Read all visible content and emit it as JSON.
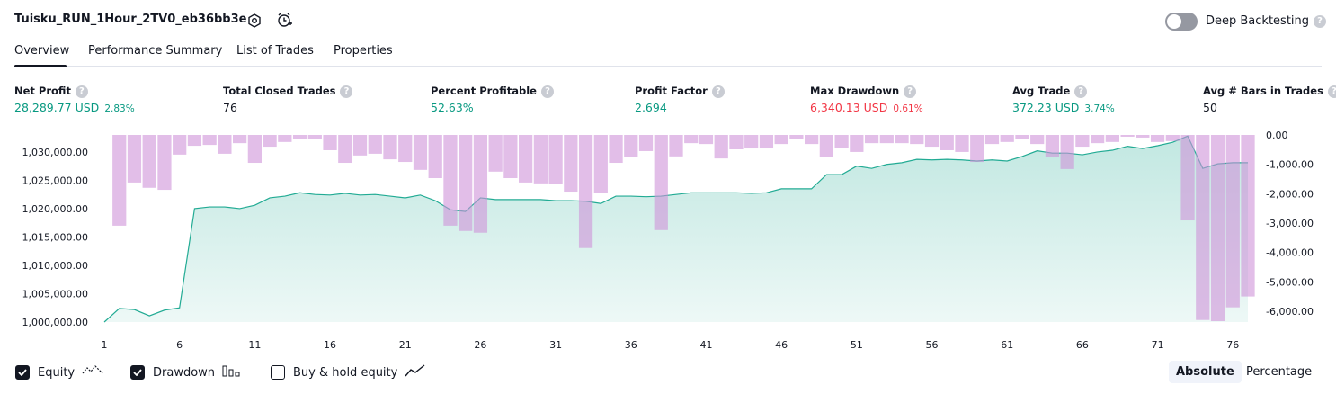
{
  "header": {
    "title": "Tuisku_RUN_1Hour_2TV0_eb36bb3e",
    "toggle_label": "Deep Backtesting"
  },
  "tabs": [
    "Overview",
    "Performance Summary",
    "List of Trades",
    "Properties"
  ],
  "metrics": [
    {
      "label": "Net Profit",
      "value": "28,289.77 USD",
      "extra": "2.83%",
      "color": "#089981"
    },
    {
      "label": "Total Closed Trades",
      "value": "76",
      "color": "#131722"
    },
    {
      "label": "Percent Profitable",
      "value": "52.63%",
      "color": "#089981"
    },
    {
      "label": "Profit Factor",
      "value": "2.694",
      "color": "#089981"
    },
    {
      "label": "Max Drawdown",
      "value": "6,340.13 USD",
      "extra": "0.61%",
      "color": "#f23645"
    },
    {
      "label": "Avg Trade",
      "value": "372.23 USD",
      "extra": "3.74%",
      "color": "#089981"
    },
    {
      "label": "Avg # Bars in Trades",
      "value": "50",
      "color": "#131722"
    }
  ],
  "chart_data": {
    "type": "line",
    "x": [
      1,
      2,
      3,
      4,
      5,
      6,
      7,
      8,
      9,
      10,
      11,
      12,
      13,
      14,
      15,
      16,
      17,
      18,
      19,
      20,
      21,
      22,
      23,
      24,
      25,
      26,
      27,
      28,
      29,
      30,
      31,
      32,
      33,
      34,
      35,
      36,
      37,
      38,
      39,
      40,
      41,
      42,
      43,
      44,
      45,
      46,
      47,
      48,
      49,
      50,
      51,
      52,
      53,
      54,
      55,
      56,
      57,
      58,
      59,
      60,
      61,
      62,
      63,
      64,
      65,
      66,
      67,
      68,
      69,
      70,
      71,
      72,
      73,
      74,
      75,
      76,
      77
    ],
    "series": [
      {
        "name": "Equity",
        "color": "#22ab94",
        "values": [
          1000000,
          1002400,
          1002200,
          1001100,
          1002100,
          1002500,
          1020000,
          1020300,
          1020300,
          1020000,
          1020600,
          1021900,
          1022200,
          1022800,
          1022500,
          1022400,
          1022700,
          1022400,
          1022500,
          1022200,
          1021900,
          1022400,
          1021400,
          1019800,
          1019500,
          1021900,
          1021600,
          1021600,
          1021600,
          1021600,
          1021400,
          1021400,
          1021300,
          1020900,
          1022200,
          1022200,
          1022100,
          1022200,
          1022500,
          1022800,
          1022800,
          1022800,
          1022800,
          1022700,
          1022800,
          1023500,
          1023500,
          1023500,
          1026000,
          1026000,
          1027500,
          1027100,
          1027800,
          1028100,
          1028700,
          1028600,
          1028700,
          1028600,
          1028400,
          1028600,
          1028400,
          1029200,
          1030200,
          1029800,
          1029800,
          1029500,
          1030000,
          1030300,
          1031000,
          1030600,
          1031100,
          1031700,
          1032800,
          1027100,
          1027900,
          1028100,
          1028100
        ]
      },
      {
        "name": "Drawdown",
        "color": "#ce93d8",
        "axis": "y2",
        "values": [
          null,
          -3090,
          -1620,
          -1800,
          -1870,
          -670,
          -370,
          -340,
          -640,
          -280,
          -950,
          -400,
          -240,
          -150,
          -150,
          -520,
          -950,
          -700,
          -640,
          -830,
          -920,
          -1190,
          -1470,
          -3090,
          -3270,
          -3330,
          -1250,
          -1470,
          -1620,
          -1650,
          -1680,
          -1930,
          -3850,
          -1990,
          -950,
          -760,
          -550,
          -3240,
          -730,
          -280,
          -310,
          -800,
          -490,
          -460,
          -460,
          -310,
          -150,
          -310,
          -760,
          -430,
          -580,
          -280,
          -280,
          -280,
          -310,
          -400,
          -520,
          -580,
          -920,
          -310,
          -240,
          -150,
          -310,
          -760,
          -1160,
          -400,
          -280,
          -240,
          -60,
          -90,
          -240,
          -210,
          -2910,
          -6300,
          -6340,
          -5870,
          -5500
        ]
      }
    ],
    "xlim": [
      1,
      77
    ],
    "xticks": [
      1,
      6,
      11,
      16,
      21,
      26,
      31,
      36,
      41,
      46,
      51,
      56,
      61,
      66,
      71,
      76
    ],
    "ylim": [
      1000000,
      1033000
    ],
    "yticks": [
      {
        "value": 1000000,
        "label": "1,000,000.00"
      },
      {
        "value": 1005000,
        "label": "1,005,000.00"
      },
      {
        "value": 1010000,
        "label": "1,010,000.00"
      },
      {
        "value": 1015000,
        "label": "1,015,000.00"
      },
      {
        "value": 1020000,
        "label": "1,020,000.00"
      },
      {
        "value": 1025000,
        "label": "1,025,000.00"
      },
      {
        "value": 1030000,
        "label": "1,030,000.00"
      }
    ],
    "y2lim": [
      -6370,
      0
    ],
    "y2ticks": [
      {
        "value": 0,
        "label": "0.00"
      },
      {
        "value": -1000,
        "label": "-1,000.00"
      },
      {
        "value": -2000,
        "label": "-2,000.00"
      },
      {
        "value": -3000,
        "label": "-3,000.00"
      },
      {
        "value": -4000,
        "label": "-4,000.00"
      },
      {
        "value": -5000,
        "label": "-5,000.00"
      },
      {
        "value": -6000,
        "label": "-6,000.00"
      }
    ]
  },
  "legend": [
    {
      "label": "Equity",
      "checked": true
    },
    {
      "label": "Drawdown",
      "checked": true
    },
    {
      "label": "Buy & hold equity",
      "checked": false
    }
  ],
  "modes": [
    {
      "label": "Absolute",
      "active": true
    },
    {
      "label": "Percentage",
      "active": false
    }
  ]
}
